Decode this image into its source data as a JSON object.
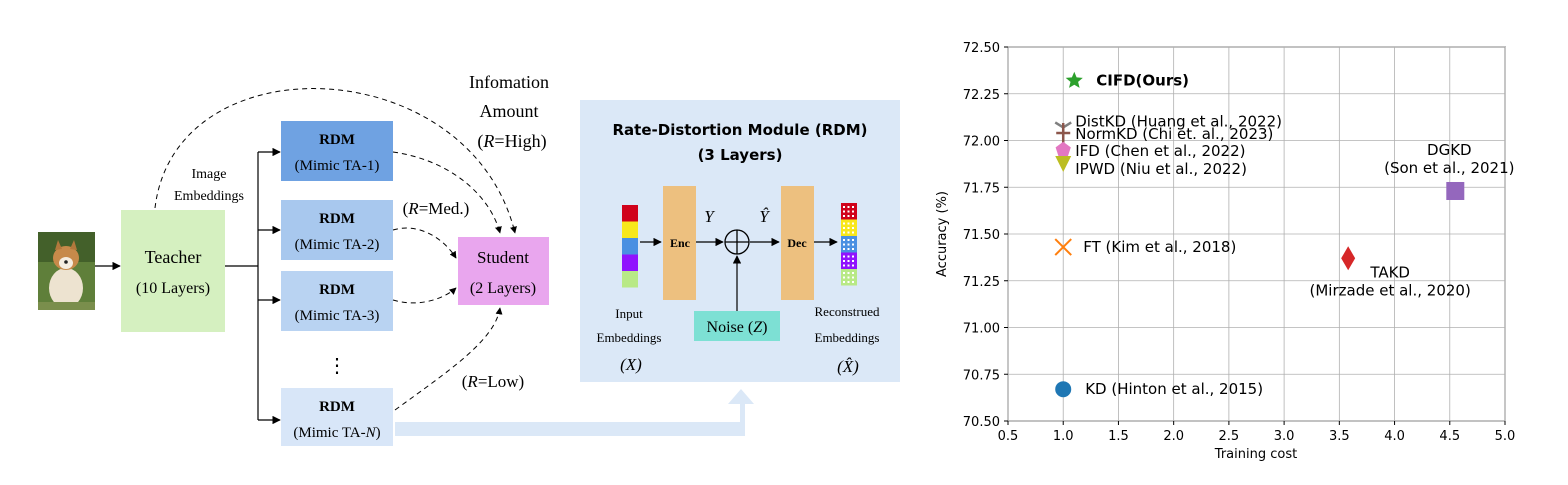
{
  "left_diagram": {
    "image_label": "Image\nEmbeddings",
    "teacher": {
      "title": "Teacher",
      "subtitle": "(10 Layers)"
    },
    "rdm_nodes": [
      {
        "title": "RDM",
        "subtitle": "(Mimic TA-1)",
        "color": "#6fa2e2"
      },
      {
        "title": "RDM",
        "subtitle": "(Mimic TA-2)",
        "color": "#a8c8ee"
      },
      {
        "title": "RDM",
        "subtitle": "(Mimic TA-3)",
        "color": "#b9d3f2"
      },
      {
        "title": "RDM",
        "subtitle": "(Mimic TA-",
        "subtitle_italic": "N",
        "subtitle_end": ")",
        "color": "#d8e6f8"
      }
    ],
    "ellipsis": "⋮",
    "student": {
      "title": "Student",
      "subtitle": "(2 Layers)"
    },
    "info_amount": {
      "line1": "Infomation",
      "line2": "Amount",
      "line3": "=High)"
    },
    "r_med": "=Med.)",
    "r_low": "=Low)",
    "r_symbol": "R"
  },
  "rdm_panel": {
    "title1": "Rate-Distortion Module (RDM)",
    "title2": "(3 Layers)",
    "enc": "Enc",
    "dec": "Dec",
    "y": "Y",
    "y_hat": "Ŷ",
    "noise": "Noise (",
    "noise_var": "Z",
    "input_label1": "Input",
    "input_label2": "Embeddings",
    "input_var": "(X)",
    "recon_label1": "Reconstrued",
    "recon_label2": "Embeddings",
    "recon_var": "(X̂)",
    "emb_colors": [
      "#d0021b",
      "#f8e71c",
      "#4a90e2",
      "#9013fe",
      "#b8e986"
    ]
  },
  "chart_data": {
    "type": "scatter",
    "xlabel": "Training cost",
    "ylabel": "Accuracy (%)",
    "xlim": [
      0.5,
      5.0
    ],
    "ylim": [
      70.5,
      72.5
    ],
    "xticks": [
      "0.5",
      "1.0",
      "1.5",
      "2.0",
      "2.5",
      "3.0",
      "3.5",
      "4.0",
      "4.5",
      "5.0"
    ],
    "yticks": [
      "70.50",
      "70.75",
      "71.00",
      "71.25",
      "71.50",
      "71.75",
      "72.00",
      "72.25",
      "72.50"
    ],
    "grid": true,
    "points": [
      {
        "label": "CIFD(Ours)",
        "x": 1.1,
        "y": 72.32,
        "marker": "star",
        "color": "#2ca02c",
        "bold": true
      },
      {
        "label": "DistKD (Huang et al., 2022)",
        "x": 1.0,
        "y": 72.07,
        "marker": "tri_down",
        "color": "#7f7f7f"
      },
      {
        "label": "NormKD (Chi et. al., 2023)",
        "x": 1.0,
        "y": 72.04,
        "marker": "plus",
        "color": "#8c564b"
      },
      {
        "label": "IFD (Chen et al., 2022)",
        "x": 1.0,
        "y": 71.95,
        "marker": "pentagon",
        "color": "#e377c2"
      },
      {
        "label": "IPWD (Niu et al., 2022)",
        "x": 1.0,
        "y": 71.88,
        "marker": "triangle_down",
        "color": "#bcbd22"
      },
      {
        "label": "DGKD\n(Son et al., 2021)",
        "x": 4.55,
        "y": 71.73,
        "marker": "square",
        "color": "#9467bd"
      },
      {
        "label": "FT (Kim et al., 2018)",
        "x": 1.0,
        "y": 71.43,
        "marker": "x",
        "color": "#ff7f0e"
      },
      {
        "label": "TAKD\n(Mirzade et al., 2020)",
        "x": 3.58,
        "y": 71.37,
        "marker": "diamond",
        "color": "#d62728"
      },
      {
        "label": "KD (Hinton et al., 2015)",
        "x": 1.0,
        "y": 70.67,
        "marker": "circle",
        "color": "#1f77b4"
      }
    ]
  }
}
